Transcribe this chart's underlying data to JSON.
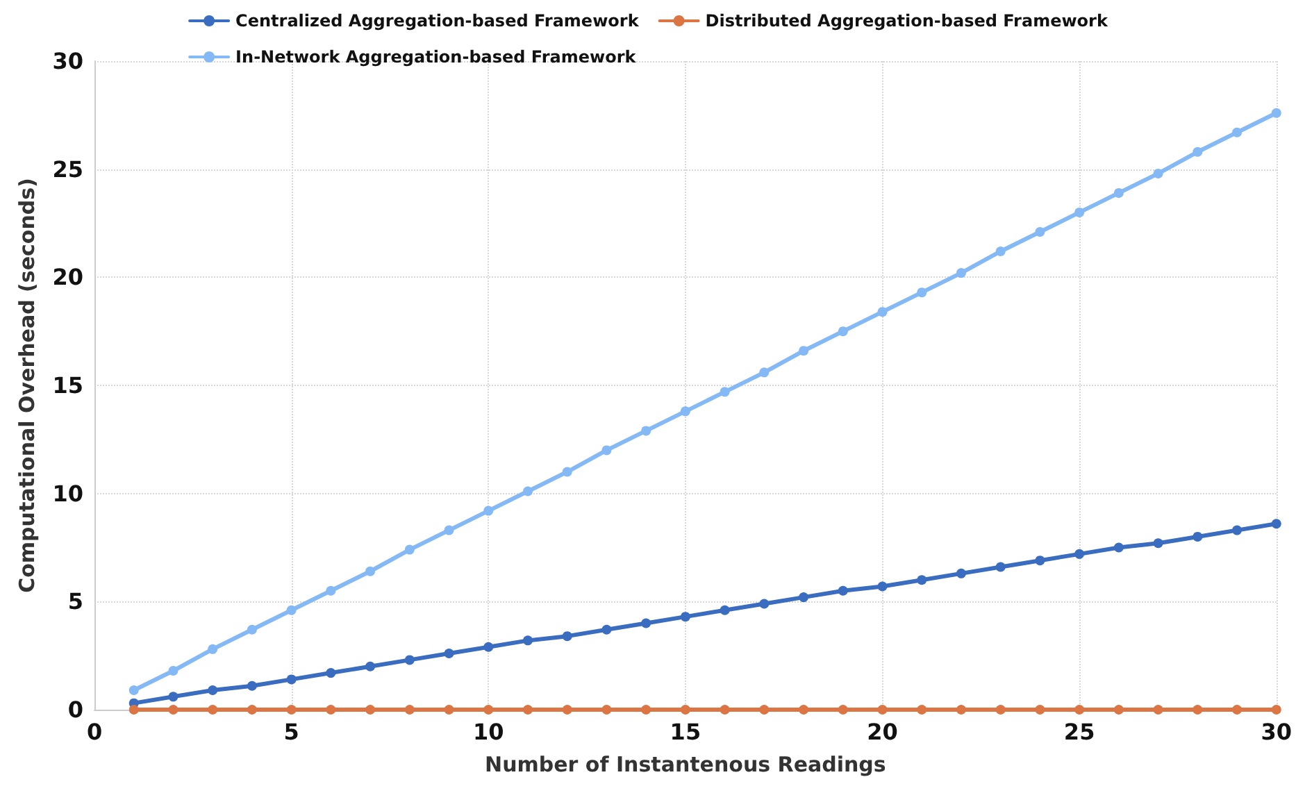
{
  "chart_data": {
    "type": "line",
    "xlabel": "Number of Instantenous Readings",
    "ylabel": "Computational Overhead (seconds)",
    "x": [
      1,
      2,
      3,
      4,
      5,
      6,
      7,
      8,
      9,
      10,
      11,
      12,
      13,
      14,
      15,
      16,
      17,
      18,
      19,
      20,
      21,
      22,
      23,
      24,
      25,
      26,
      27,
      28,
      29,
      30
    ],
    "series": [
      {
        "name": "Centralized Aggregation-based Framework",
        "color": "#3a6cc0",
        "values": [
          0.3,
          0.6,
          0.9,
          1.1,
          1.4,
          1.7,
          2.0,
          2.3,
          2.6,
          2.9,
          3.2,
          3.4,
          3.7,
          4.0,
          4.3,
          4.6,
          4.9,
          5.2,
          5.5,
          5.7,
          6.0,
          6.3,
          6.6,
          6.9,
          7.2,
          7.5,
          7.7,
          8.0,
          8.3,
          8.6
        ]
      },
      {
        "name": "Distributed Aggregation-based Framework",
        "color": "#dc7544",
        "values": [
          0,
          0,
          0,
          0,
          0,
          0,
          0,
          0,
          0,
          0,
          0,
          0,
          0,
          0,
          0,
          0,
          0,
          0,
          0,
          0,
          0,
          0,
          0,
          0,
          0,
          0,
          0,
          0,
          0,
          0
        ]
      },
      {
        "name": "In-Network Aggregation-based Framework",
        "color": "#84b9f5",
        "values": [
          0.9,
          1.8,
          2.8,
          3.7,
          4.6,
          5.5,
          6.4,
          7.4,
          8.3,
          9.2,
          10.1,
          11.0,
          12.0,
          12.9,
          13.8,
          14.7,
          15.6,
          16.6,
          17.5,
          18.4,
          19.3,
          20.2,
          21.2,
          22.1,
          23.0,
          23.9,
          24.8,
          25.8,
          26.7,
          27.6
        ]
      }
    ],
    "xlim": [
      0,
      30
    ],
    "xticks": [
      0,
      5,
      10,
      15,
      20,
      25,
      30
    ],
    "ylim": [
      0,
      30
    ],
    "yticks": [
      0,
      5,
      10,
      15,
      20,
      25,
      30
    ],
    "grid": true,
    "legend": "top",
    "marker": "circle",
    "line_style": "solid"
  }
}
